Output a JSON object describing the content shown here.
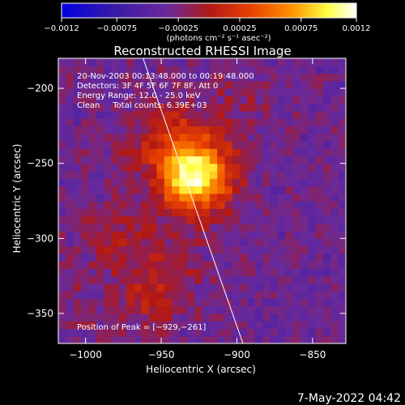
{
  "colorbar": {
    "ticks": [
      "-0.0012",
      "-0.00075",
      "-0.00025",
      "0.00025",
      "0.00075",
      "0.0012"
    ],
    "tick_values": [
      -0.0012,
      -0.00075,
      -0.00025,
      0.00025,
      0.00075,
      0.0012
    ],
    "range": [
      -0.0012,
      0.0012
    ],
    "unit_label": "(photons cm⁻² s⁻¹ asec⁻²)",
    "colors": [
      "#0000e0",
      "#3a1aa8",
      "#6a2a9a",
      "#b01818",
      "#e84000",
      "#ff9000",
      "#ffff40",
      "#ffffff"
    ]
  },
  "chart_data": {
    "type": "heatmap",
    "title": "Reconstructed RHESSI Image",
    "xlabel": "Heliocentric X (arcsec)",
    "ylabel": "Heliocentric Y (arcsec)",
    "xlim": [
      -1018,
      -828
    ],
    "ylim": [
      -370,
      -180
    ],
    "x_ticks": [
      -1000,
      -950,
      -900,
      -850
    ],
    "y_ticks": [
      -200,
      -250,
      -300,
      -350
    ],
    "x_tick_labels": [
      "−1000",
      "−950",
      "−900",
      "−850"
    ],
    "y_tick_labels": [
      "−200",
      "−250",
      "−300",
      "−350"
    ],
    "peak": [
      -929,
      -261
    ],
    "limb_line": [
      [
        -962,
        -180
      ],
      [
        -896,
        -370
      ]
    ],
    "annotations": [
      "20-Nov-2003 00:13:48.000 to 00:19:48.000",
      "Detectors: 3F 4F 5F 6F 7F 8F, Att 0",
      "Energy Range: 12.0 - 25.0 keV",
      "Clean     Total counts: 6.39E+03"
    ],
    "peak_label": "Position of Peak = [−929,−261]",
    "grid": false
  },
  "footer": {
    "date": "7-May-2022 04:42"
  }
}
